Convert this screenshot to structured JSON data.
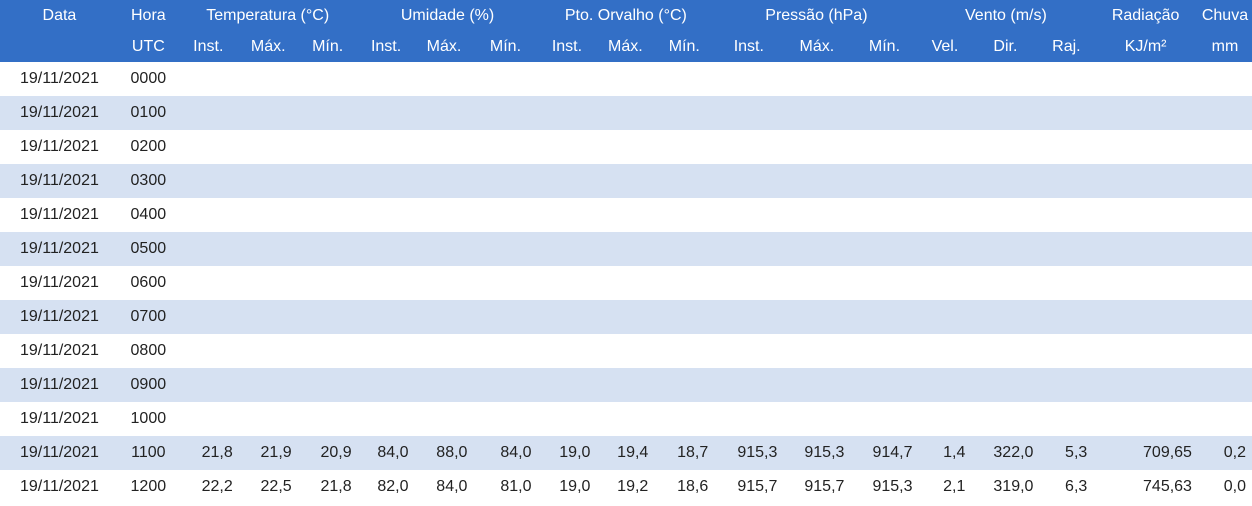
{
  "header": {
    "groups": [
      "Data",
      "Hora",
      "Temperatura (°C)",
      "Umidade (%)",
      "Pto. Orvalho (°C)",
      "Pressão (hPa)",
      "Vento (m/s)",
      "Radiação",
      "Chuva"
    ],
    "subs": [
      "",
      "UTC",
      "Inst.",
      "Máx.",
      "Mín.",
      "Inst.",
      "Máx.",
      "Mín.",
      "Inst.",
      "Máx.",
      "Mín.",
      "Inst.",
      "Máx.",
      "Mín.",
      "Vel.",
      "Dir.",
      "Raj.",
      "KJ/m²",
      "mm"
    ]
  },
  "rows": [
    [
      "19/11/2021",
      "0000",
      "",
      "",
      "",
      "",
      "",
      "",
      "",
      "",
      "",
      "",
      "",
      "",
      "",
      "",
      "",
      "",
      ""
    ],
    [
      "19/11/2021",
      "0100",
      "",
      "",
      "",
      "",
      "",
      "",
      "",
      "",
      "",
      "",
      "",
      "",
      "",
      "",
      "",
      "",
      ""
    ],
    [
      "19/11/2021",
      "0200",
      "",
      "",
      "",
      "",
      "",
      "",
      "",
      "",
      "",
      "",
      "",
      "",
      "",
      "",
      "",
      "",
      ""
    ],
    [
      "19/11/2021",
      "0300",
      "",
      "",
      "",
      "",
      "",
      "",
      "",
      "",
      "",
      "",
      "",
      "",
      "",
      "",
      "",
      "",
      ""
    ],
    [
      "19/11/2021",
      "0400",
      "",
      "",
      "",
      "",
      "",
      "",
      "",
      "",
      "",
      "",
      "",
      "",
      "",
      "",
      "",
      "",
      ""
    ],
    [
      "19/11/2021",
      "0500",
      "",
      "",
      "",
      "",
      "",
      "",
      "",
      "",
      "",
      "",
      "",
      "",
      "",
      "",
      "",
      "",
      ""
    ],
    [
      "19/11/2021",
      "0600",
      "",
      "",
      "",
      "",
      "",
      "",
      "",
      "",
      "",
      "",
      "",
      "",
      "",
      "",
      "",
      "",
      ""
    ],
    [
      "19/11/2021",
      "0700",
      "",
      "",
      "",
      "",
      "",
      "",
      "",
      "",
      "",
      "",
      "",
      "",
      "",
      "",
      "",
      "",
      ""
    ],
    [
      "19/11/2021",
      "0800",
      "",
      "",
      "",
      "",
      "",
      "",
      "",
      "",
      "",
      "",
      "",
      "",
      "",
      "",
      "",
      "",
      ""
    ],
    [
      "19/11/2021",
      "0900",
      "",
      "",
      "",
      "",
      "",
      "",
      "",
      "",
      "",
      "",
      "",
      "",
      "",
      "",
      "",
      "",
      ""
    ],
    [
      "19/11/2021",
      "1000",
      "",
      "",
      "",
      "",
      "",
      "",
      "",
      "",
      "",
      "",
      "",
      "",
      "",
      "",
      "",
      "",
      ""
    ],
    [
      "19/11/2021",
      "1100",
      "21,8",
      "21,9",
      "20,9",
      "84,0",
      "88,0",
      "84,0",
      "19,0",
      "19,4",
      "18,7",
      "915,3",
      "915,3",
      "914,7",
      "1,4",
      "322,0",
      "5,3",
      "709,65",
      "0,2"
    ],
    [
      "19/11/2021",
      "1200",
      "22,2",
      "22,5",
      "21,8",
      "82,0",
      "84,0",
      "81,0",
      "19,0",
      "19,2",
      "18,6",
      "915,7",
      "915,7",
      "915,3",
      "2,1",
      "319,0",
      "6,3",
      "745,63",
      "0,0"
    ]
  ],
  "colors": {
    "header_bg": "#336fc6",
    "stripe_bg": "#d6e1f2"
  }
}
